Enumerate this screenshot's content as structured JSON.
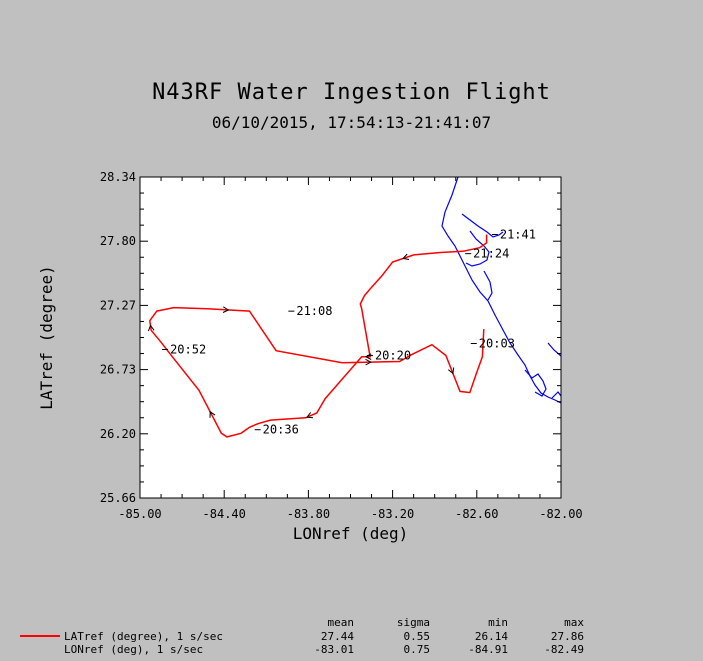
{
  "title": "N43RF Water Ingestion Flight",
  "subtitle": "06/10/2015, 17:54:13-21:41:07",
  "chart_data": {
    "type": "line",
    "xlabel": "LONref (deg)",
    "ylabel": "LATref (degree)",
    "xlim": [
      -85.0,
      -82.0
    ],
    "ylim": [
      25.66,
      28.34
    ],
    "xticks": [
      "-85.00",
      "-84.40",
      "-83.80",
      "-83.20",
      "-82.60",
      "-82.00"
    ],
    "yticks": [
      "25.66",
      "26.20",
      "26.73",
      "27.27",
      "27.80",
      "28.34"
    ],
    "grid": false,
    "series": [
      {
        "name": "LATref (degree), 1 s/sec",
        "color": "#ff0000",
        "x": [
          -82.53,
          -82.53,
          -82.58,
          -82.7,
          -82.86,
          -83.05,
          -83.2,
          -83.28,
          -83.35,
          -83.4,
          -83.43,
          -83.42,
          -83.36,
          -83.42,
          -83.68,
          -83.74,
          -83.8,
          -83.82,
          -84.07,
          -84.16,
          -84.22,
          -84.28,
          -84.38,
          -84.42,
          -84.58,
          -84.77,
          -84.85,
          -84.92,
          -84.93,
          -84.88,
          -84.76,
          -84.52,
          -84.22,
          -84.03,
          -83.56,
          -83.15,
          -83.06,
          -82.92,
          -82.82,
          -82.72,
          -82.65,
          -82.6,
          -82.56,
          -82.55
        ],
        "y": [
          27.86,
          27.79,
          27.75,
          27.72,
          27.71,
          27.69,
          27.63,
          27.51,
          27.42,
          27.35,
          27.28,
          27.24,
          26.84,
          26.84,
          26.49,
          26.37,
          26.34,
          26.33,
          26.31,
          26.28,
          26.25,
          26.2,
          26.17,
          26.2,
          26.56,
          26.84,
          26.96,
          27.06,
          27.14,
          27.22,
          27.25,
          27.24,
          27.22,
          26.89,
          26.79,
          26.8,
          26.86,
          26.94,
          26.85,
          26.55,
          26.54,
          26.71,
          26.84,
          27.07
        ]
      }
    ],
    "time_labels": [
      {
        "text": "20:03",
        "x": -82.6,
        "y": 26.95
      },
      {
        "text": "20:20",
        "x": -83.34,
        "y": 26.85
      },
      {
        "text": "20:36",
        "x": -84.14,
        "y": 26.23
      },
      {
        "text": "20:52",
        "x": -84.8,
        "y": 26.9
      },
      {
        "text": "21:08",
        "x": -83.9,
        "y": 27.22
      },
      {
        "text": "21:24",
        "x": -82.64,
        "y": 27.7
      },
      {
        "text": "21:41",
        "x": -82.45,
        "y": 27.86
      }
    ],
    "coastline_color": "#0000ff",
    "legend": "bottom-left"
  },
  "stats": {
    "headers": [
      "mean",
      "sigma",
      "min",
      "max"
    ],
    "rows": [
      {
        "label": "LATref (degree), 1 s/sec",
        "values": [
          "27.44",
          "0.55",
          "26.14",
          "27.86"
        ]
      },
      {
        "label": "LONref (deg), 1 s/sec",
        "values": [
          "-83.01",
          "0.75",
          "-84.91",
          "-82.49"
        ]
      }
    ]
  }
}
